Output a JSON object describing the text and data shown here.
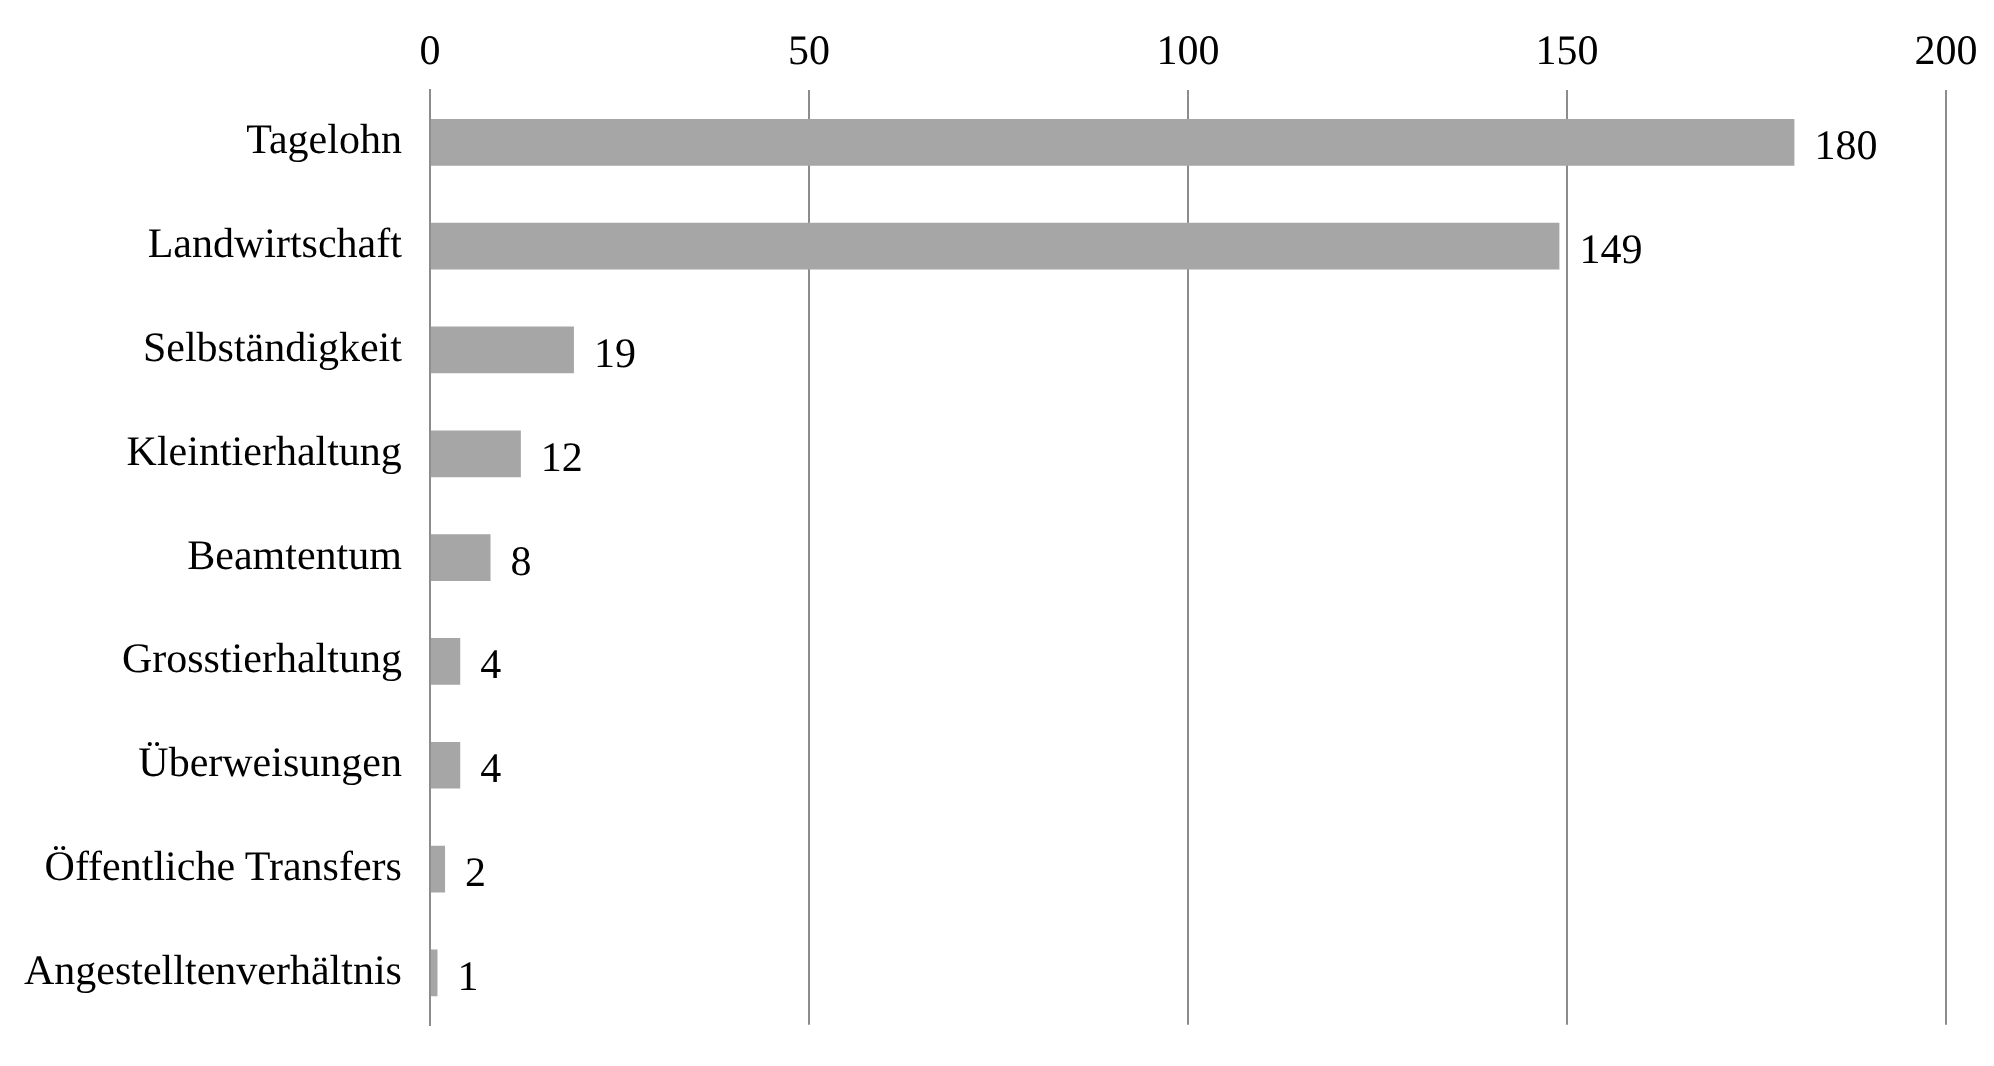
{
  "chart_data": {
    "type": "bar",
    "orientation": "horizontal",
    "categories": [
      "Tagelohn",
      "Landwirtschaft",
      "Selbständigkeit",
      "Kleintierhaltung",
      "Beamtentum",
      "Grosstierhaltung",
      "Überweisungen",
      "Öffentliche Transfers",
      "Angestelltenverhältnis"
    ],
    "values": [
      180,
      149,
      19,
      12,
      8,
      4,
      4,
      2,
      1
    ],
    "color": "#a6a6a6",
    "xlim": [
      0,
      200
    ],
    "xticks": [
      0,
      50,
      100,
      150,
      200
    ],
    "grid": "x",
    "data_labels": true,
    "legend": false
  }
}
